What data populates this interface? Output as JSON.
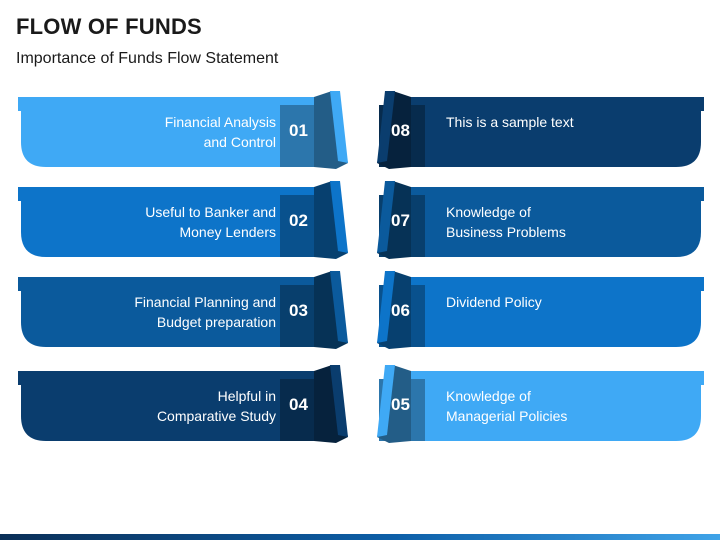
{
  "header": {
    "title": "FLOW OF FUNDS",
    "subtitle": "Importance of Funds Flow Statement"
  },
  "palette": {
    "light": "#3fa9f5",
    "medium": "#0d74c9",
    "dark": "#0b5a9c",
    "navy": "#0a3d6e"
  },
  "items_left": [
    {
      "number": "01",
      "text": "Financial Analysis\nand Control",
      "color": "#3fa9f5",
      "top_color": "#3fa9f5"
    },
    {
      "number": "02",
      "text": "Useful to Banker and\nMoney Lenders",
      "color": "#0d74c9",
      "top_color": "#0d74c9"
    },
    {
      "number": "03",
      "text": "Financial Planning and\nBudget preparation",
      "color": "#0b5a9c",
      "top_color": "#0b5a9c"
    },
    {
      "number": "04",
      "text": "Helpful in\nComparative Study",
      "color": "#0a3d6e",
      "top_color": "#0a3d6e"
    }
  ],
  "items_right": [
    {
      "number": "08",
      "text": "This is a sample text",
      "color": "#0a3d6e",
      "top_color": "#0a3d6e"
    },
    {
      "number": "07",
      "text": "Knowledge of\nBusiness Problems",
      "color": "#0b5a9c",
      "top_color": "#0b5a9c"
    },
    {
      "number": "06",
      "text": "Dividend Policy",
      "color": "#0d74c9",
      "top_color": "#0d74c9"
    },
    {
      "number": "05",
      "text": "Knowledge of\nManagerial Policies",
      "color": "#3fa9f5",
      "top_color": "#3fa9f5"
    }
  ]
}
